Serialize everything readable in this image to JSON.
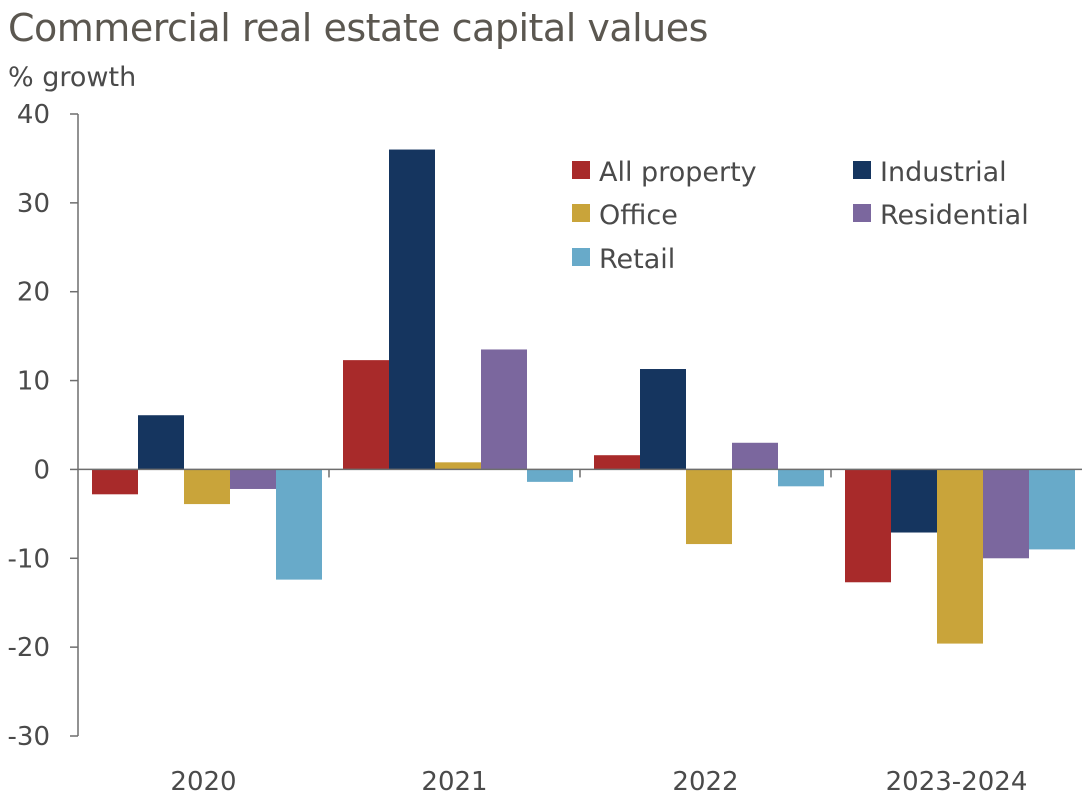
{
  "chart_data": {
    "type": "bar",
    "title": "Commercial real estate capital values",
    "ylabel": "% growth",
    "xlabel": "",
    "categories": [
      "2020",
      "2021",
      "2022",
      "2023-2024"
    ],
    "ylim": [
      -30,
      40
    ],
    "yticks": [
      40,
      30,
      20,
      10,
      0,
      -10,
      -20,
      -30
    ],
    "legend_position": "top-right",
    "series": [
      {
        "name": "All property",
        "color": "#a82a2a",
        "values": [
          -2.8,
          12.3,
          1.6,
          -12.7
        ]
      },
      {
        "name": "Industrial",
        "color": "#15355f",
        "values": [
          6.1,
          36.0,
          11.3,
          -7.1
        ]
      },
      {
        "name": "Office",
        "color": "#c9a43a",
        "values": [
          -3.9,
          0.8,
          -8.4,
          -19.6
        ]
      },
      {
        "name": "Residential",
        "color": "#7b679e",
        "values": [
          -2.2,
          13.5,
          3.0,
          -10.0
        ]
      },
      {
        "name": "Retail",
        "color": "#68aac9",
        "values": [
          -12.4,
          -1.4,
          -1.9,
          -9.0
        ]
      }
    ]
  }
}
